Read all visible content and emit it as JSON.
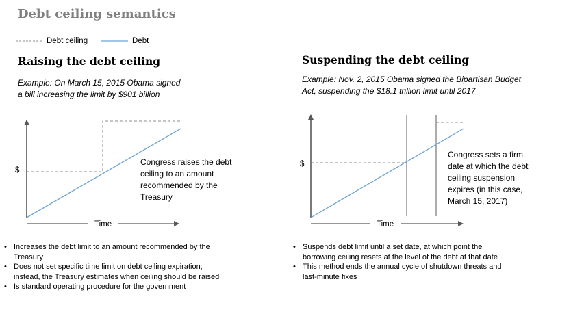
{
  "title": "Debt ceiling semantics",
  "legend": {
    "items": [
      {
        "label": "Debt ceiling",
        "style": "dashed",
        "color": "#8c8c8c"
      },
      {
        "label": "Debt",
        "style": "solid",
        "color": "#6aa3d6"
      }
    ]
  },
  "colors": {
    "axis": "#595959",
    "ceiling": "#8c8c8c",
    "debt": "#6aa3d6",
    "title": "#808080"
  },
  "left": {
    "heading": "Raising the debt ceiling",
    "example_lines": [
      "Example: On March 15, 2015 Obama signed",
      "a bill increasing the limit by $901 billion"
    ],
    "y_label": "$",
    "x_label": "Time",
    "note_lines": [
      "Congress raises the debt",
      "ceiling to an amount",
      "recommended by the",
      "Treasury"
    ],
    "bullets": [
      [
        "Increases the debt limit to an amount recommended by the",
        "Treasury"
      ],
      [
        "Does not set specific time limit on debt ceiling expiration;",
        "instead, the Treasury estimates when ceiling should be raised"
      ],
      [
        "Is standard operating procedure for the government"
      ]
    ]
  },
  "right": {
    "heading": "Suspending the debt ceiling",
    "example_lines": [
      "Example: Nov. 2, 2015 Obama signed the Bipartisan Budget",
      "Act, suspending the $18.1 trillion limit until 2017"
    ],
    "y_label": "$",
    "x_label": "Time",
    "note_lines": [
      "Congress sets a firm",
      "date at which the debt",
      "ceiling suspension",
      "expires (in this case,",
      "March 15, 2017)"
    ],
    "bullets": [
      [
        "Suspends debt limit until a set date, at which point the",
        "borrowing ceiling resets at the level of the debt at that date"
      ],
      [
        "This method ends the annual cycle of shutdown threats and",
        "last-minute fixes"
      ]
    ]
  }
}
